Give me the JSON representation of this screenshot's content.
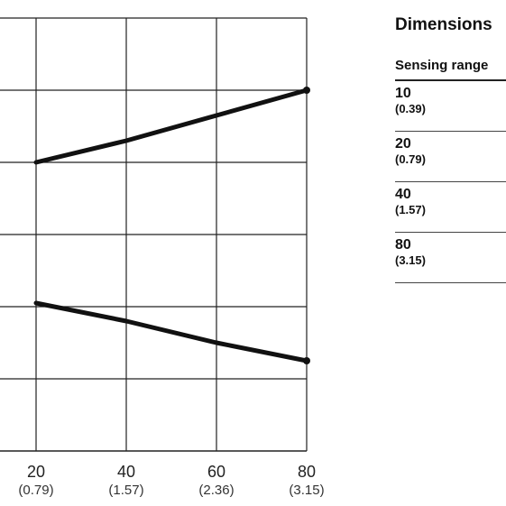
{
  "chart_data": {
    "type": "line",
    "x_ticks": [
      {
        "value": 20,
        "label": "20",
        "sublabel": "(0.79)"
      },
      {
        "value": 40,
        "label": "40",
        "sublabel": "(1.57)"
      },
      {
        "value": 60,
        "label": "60",
        "sublabel": "(2.36)"
      },
      {
        "value": 80,
        "label": "80",
        "sublabel": "(3.15)"
      }
    ],
    "xlim": [
      10,
      80
    ],
    "series": [
      {
        "x": [
          20,
          40,
          60,
          80
        ],
        "y": [
          4.0,
          4.3,
          4.65,
          5.0
        ]
      },
      {
        "x": [
          20,
          40,
          60,
          80
        ],
        "y": [
          2.05,
          1.8,
          1.5,
          1.25
        ]
      }
    ],
    "ylim": [
      0,
      6
    ],
    "grid": true
  },
  "table": {
    "title": "Dimensions",
    "column_header": "Sensing range",
    "rows": [
      {
        "value": "10",
        "sub": "(0.39)"
      },
      {
        "value": "20",
        "sub": "(0.79)"
      },
      {
        "value": "40",
        "sub": "(1.57)"
      },
      {
        "value": "80",
        "sub": "(3.15)"
      }
    ]
  }
}
